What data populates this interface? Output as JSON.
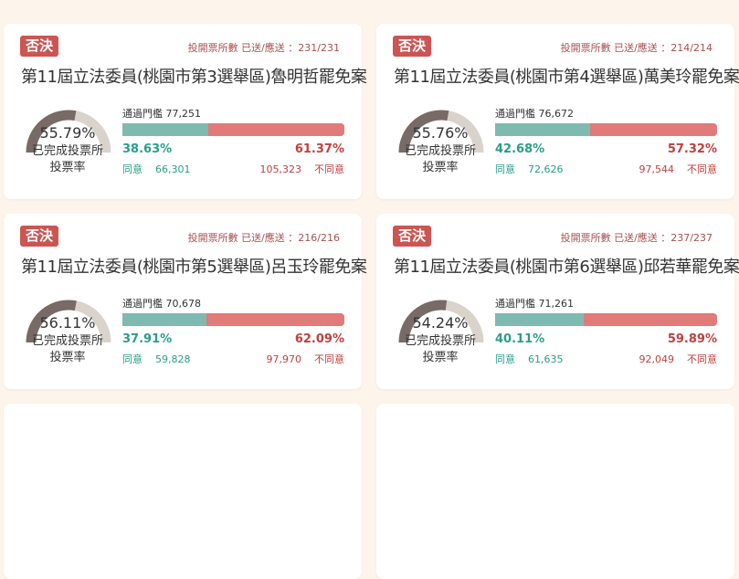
{
  "colors": {
    "agree": "#7fbab0",
    "disagree": "#e07b7a",
    "gauge_fill": "#786a66",
    "gauge_track": "#d9d3cc",
    "badge": "#cc5552"
  },
  "labels": {
    "gauge_label_1": "已完成投票所",
    "gauge_label_2": "投票率",
    "agree": "同意",
    "disagree": "不同意"
  },
  "cards": [
    {
      "badge": "否決",
      "stations": "投開票所數 已送/應送 ：231/231",
      "title": "第11屆立法委員(桃園市第3選舉區)魯明哲罷免案",
      "turnout": "55.79%",
      "turnout_value": 55.79,
      "threshold": "通過門檻 77,251",
      "agree_pct": "38.63%",
      "agree_value": 38.63,
      "disagree_pct": "61.37%",
      "agree_count": "66,301",
      "disagree_count": "105,323"
    },
    {
      "badge": "否決",
      "stations": "投開票所數 已送/應送 ：214/214",
      "title": "第11屆立法委員(桃園市第4選舉區)萬美玲罷免案",
      "turnout": "55.76%",
      "turnout_value": 55.76,
      "threshold": "通過門檻 76,672",
      "agree_pct": "42.68%",
      "agree_value": 42.68,
      "disagree_pct": "57.32%",
      "agree_count": "72,626",
      "disagree_count": "97,544"
    },
    {
      "badge": "否決",
      "stations": "投開票所數 已送/應送 ：216/216",
      "title": "第11屆立法委員(桃園市第5選舉區)呂玉玲罷免案",
      "turnout": "56.11%",
      "turnout_value": 56.11,
      "threshold": "通過門檻 70,678",
      "agree_pct": "37.91%",
      "agree_value": 37.91,
      "disagree_pct": "62.09%",
      "agree_count": "59,828",
      "disagree_count": "97,970"
    },
    {
      "badge": "否決",
      "stations": "投開票所數 已送/應送 ：237/237",
      "title": "第11屆立法委員(桃園市第6選舉區)邱若華罷免案",
      "turnout": "54.24%",
      "turnout_value": 54.24,
      "threshold": "通過門檻 71,261",
      "agree_pct": "40.11%",
      "agree_value": 40.11,
      "disagree_pct": "59.89%",
      "agree_count": "61,635",
      "disagree_count": "92,049"
    }
  ]
}
